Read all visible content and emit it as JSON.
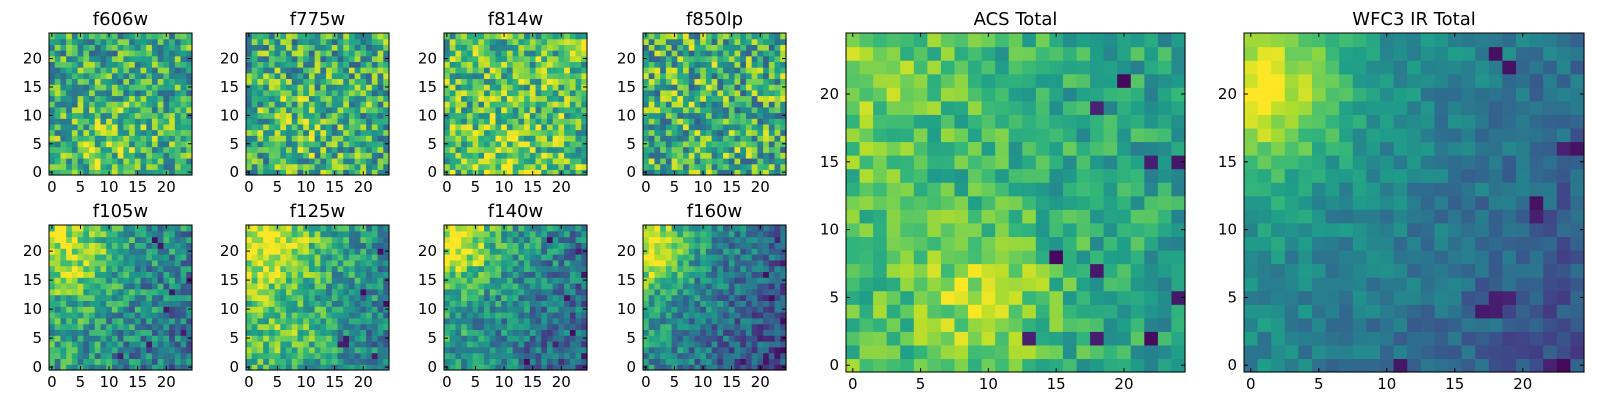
{
  "chart_data": [
    {
      "type": "heatmap",
      "title": "f606w",
      "colormap": "viridis",
      "grid_size": 25,
      "xlim": [
        -0.5,
        24.5
      ],
      "ylim": [
        -0.5,
        24.5
      ],
      "xticks": [
        0,
        5,
        10,
        15,
        20
      ],
      "yticks": [
        0,
        5,
        10,
        15,
        20
      ],
      "xtick_labels": [
        "0",
        "5",
        "10",
        "15",
        "20"
      ],
      "ytick_labels": [
        "0",
        "5",
        "10",
        "15",
        "20"
      ],
      "field": {
        "base": 0.62,
        "gx": 0.0,
        "gy": 0.0,
        "blobs": [
          [
            10,
            5,
            5,
            0.15
          ]
        ],
        "noise": 0.3,
        "seed": 11
      },
      "dark_pixels": []
    },
    {
      "type": "heatmap",
      "title": "f775w",
      "colormap": "viridis",
      "grid_size": 25,
      "xlim": [
        -0.5,
        24.5
      ],
      "ylim": [
        -0.5,
        24.5
      ],
      "xticks": [
        0,
        5,
        10,
        15,
        20
      ],
      "yticks": [
        0,
        5,
        10,
        15,
        20
      ],
      "xtick_labels": [
        "0",
        "5",
        "10",
        "15",
        "20"
      ],
      "ytick_labels": [
        "0",
        "5",
        "10",
        "15",
        "20"
      ],
      "field": {
        "base": 0.62,
        "gx": 0.0,
        "gy": 0.0,
        "blobs": [
          [
            8,
            8,
            5,
            0.1
          ]
        ],
        "noise": 0.32,
        "seed": 23
      },
      "dark_pixels": []
    },
    {
      "type": "heatmap",
      "title": "f814w",
      "colormap": "viridis",
      "grid_size": 25,
      "xlim": [
        -0.5,
        24.5
      ],
      "ylim": [
        -0.5,
        24.5
      ],
      "xticks": [
        0,
        5,
        10,
        15,
        20
      ],
      "yticks": [
        0,
        5,
        10,
        15,
        20
      ],
      "xtick_labels": [
        "0",
        "5",
        "10",
        "15",
        "20"
      ],
      "ytick_labels": [
        "0",
        "5",
        "10",
        "15",
        "20"
      ],
      "field": {
        "base": 0.7,
        "gx": 0.0,
        "gy": 0.0,
        "blobs": [
          [
            10,
            3,
            4,
            0.15
          ]
        ],
        "noise": 0.3,
        "seed": 37
      },
      "dark_pixels": []
    },
    {
      "type": "heatmap",
      "title": "f850lp",
      "colormap": "viridis",
      "grid_size": 25,
      "xlim": [
        -0.5,
        24.5
      ],
      "ylim": [
        -0.5,
        24.5
      ],
      "xticks": [
        0,
        5,
        10,
        15,
        20
      ],
      "yticks": [
        0,
        5,
        10,
        15,
        20
      ],
      "xtick_labels": [
        "0",
        "5",
        "10",
        "15",
        "20"
      ],
      "ytick_labels": [
        "0",
        "5",
        "10",
        "15",
        "20"
      ],
      "field": {
        "base": 0.64,
        "gx": 0.0,
        "gy": 0.0,
        "blobs": [],
        "noise": 0.34,
        "seed": 51
      },
      "dark_pixels": []
    },
    {
      "type": "heatmap",
      "title": "ACS Total",
      "colormap": "viridis",
      "grid_size": 25,
      "xlim": [
        -0.5,
        24.5
      ],
      "ylim": [
        -0.5,
        24.5
      ],
      "xticks": [
        0,
        5,
        10,
        15,
        20
      ],
      "yticks": [
        0,
        5,
        10,
        15,
        20
      ],
      "xtick_labels": [
        "0",
        "5",
        "10",
        "15",
        "20"
      ],
      "ytick_labels": [
        "0",
        "5",
        "10",
        "15",
        "20"
      ],
      "field": {
        "base": 0.64,
        "gx": -0.006,
        "gy": 0.0,
        "blobs": [
          [
            10,
            5,
            3.5,
            0.25
          ],
          [
            3,
            22,
            4,
            0.1
          ]
        ],
        "noise": 0.16,
        "seed": 67
      },
      "dark_pixels": [
        [
          18,
          19
        ],
        [
          22,
          15
        ],
        [
          24,
          15
        ],
        [
          15,
          8
        ],
        [
          18,
          7
        ],
        [
          24,
          5
        ],
        [
          13,
          2
        ],
        [
          18,
          2
        ],
        [
          22,
          2
        ],
        [
          20,
          21
        ]
      ]
    },
    {
      "type": "heatmap",
      "title": "WFC3 IR Total",
      "colormap": "viridis",
      "grid_size": 25,
      "xlim": [
        -0.5,
        24.5
      ],
      "ylim": [
        -0.5,
        24.5
      ],
      "xticks": [
        0,
        5,
        10,
        15,
        20
      ],
      "yticks": [
        0,
        5,
        10,
        15,
        20
      ],
      "xtick_labels": [
        "0",
        "5",
        "10",
        "15",
        "20"
      ],
      "ytick_labels": [
        "0",
        "5",
        "10",
        "15",
        "20"
      ],
      "field": {
        "base": 0.42,
        "gx": -0.01,
        "gy": 0.006,
        "blobs": [
          [
            1,
            20,
            4,
            0.4
          ]
        ],
        "noise": 0.1,
        "seed": 79
      },
      "dark_pixels": [
        [
          18,
          23
        ],
        [
          19,
          22
        ],
        [
          23,
          16
        ],
        [
          24,
          16
        ],
        [
          21,
          12
        ],
        [
          21,
          11
        ],
        [
          18,
          5
        ],
        [
          19,
          5
        ],
        [
          17,
          4
        ],
        [
          18,
          4
        ],
        [
          22,
          0
        ],
        [
          23,
          0
        ],
        [
          11,
          0
        ]
      ]
    },
    {
      "type": "heatmap",
      "title": "f105w",
      "colormap": "viridis",
      "grid_size": 25,
      "xlim": [
        -0.5,
        24.5
      ],
      "ylim": [
        -0.5,
        24.5
      ],
      "xticks": [
        0,
        5,
        10,
        15,
        20
      ],
      "yticks": [
        0,
        5,
        10,
        15,
        20
      ],
      "xtick_labels": [
        "0",
        "5",
        "10",
        "15",
        "20"
      ],
      "ytick_labels": [
        "0",
        "5",
        "10",
        "15",
        "20"
      ],
      "field": {
        "base": 0.52,
        "gx": -0.008,
        "gy": 0.004,
        "blobs": [
          [
            3,
            20,
            5,
            0.3
          ]
        ],
        "noise": 0.24,
        "seed": 91
      },
      "dark_pixels": [
        [
          18,
          22
        ],
        [
          19,
          21
        ],
        [
          21,
          13
        ],
        [
          20,
          10
        ],
        [
          23,
          6
        ],
        [
          17,
          4
        ],
        [
          12,
          2
        ],
        [
          24,
          15
        ]
      ]
    },
    {
      "type": "heatmap",
      "title": "f125w",
      "colormap": "viridis",
      "grid_size": 25,
      "xlim": [
        -0.5,
        24.5
      ],
      "ylim": [
        -0.5,
        24.5
      ],
      "xticks": [
        0,
        5,
        10,
        15,
        20
      ],
      "yticks": [
        0,
        5,
        10,
        15,
        20
      ],
      "xtick_labels": [
        "0",
        "5",
        "10",
        "15",
        "20"
      ],
      "ytick_labels": [
        "0",
        "5",
        "10",
        "15",
        "20"
      ],
      "field": {
        "base": 0.58,
        "gx": -0.01,
        "gy": 0.004,
        "blobs": [
          [
            4,
            21,
            5,
            0.3
          ],
          [
            8,
            5,
            4,
            0.15
          ]
        ],
        "noise": 0.22,
        "seed": 103
      },
      "dark_pixels": [
        [
          16,
          4
        ],
        [
          17,
          4
        ],
        [
          17,
          5
        ],
        [
          23,
          20
        ],
        [
          24,
          11
        ],
        [
          22,
          2
        ],
        [
          20,
          13
        ]
      ]
    },
    {
      "type": "heatmap",
      "title": "f140w",
      "colormap": "viridis",
      "grid_size": 25,
      "xlim": [
        -0.5,
        24.5
      ],
      "ylim": [
        -0.5,
        24.5
      ],
      "xticks": [
        0,
        5,
        10,
        15,
        20
      ],
      "yticks": [
        0,
        5,
        10,
        15,
        20
      ],
      "xtick_labels": [
        "0",
        "5",
        "10",
        "15",
        "20"
      ],
      "ytick_labels": [
        "0",
        "5",
        "10",
        "15",
        "20"
      ],
      "field": {
        "base": 0.48,
        "gx": -0.01,
        "gy": 0.006,
        "blobs": [
          [
            2,
            21,
            4,
            0.35
          ]
        ],
        "noise": 0.22,
        "seed": 117
      },
      "dark_pixels": [
        [
          18,
          22
        ],
        [
          23,
          20
        ],
        [
          24,
          16
        ],
        [
          21,
          12
        ],
        [
          22,
          6
        ],
        [
          19,
          4
        ],
        [
          24,
          2
        ],
        [
          14,
          1
        ]
      ]
    },
    {
      "type": "heatmap",
      "title": "f160w",
      "colormap": "viridis",
      "grid_size": 25,
      "xlim": [
        -0.5,
        24.5
      ],
      "ylim": [
        -0.5,
        24.5
      ],
      "xticks": [
        0,
        5,
        10,
        15,
        20
      ],
      "yticks": [
        0,
        5,
        10,
        15,
        20
      ],
      "xtick_labels": [
        "0",
        "5",
        "10",
        "15",
        "20"
      ],
      "ytick_labels": [
        "0",
        "5",
        "10",
        "15",
        "20"
      ],
      "field": {
        "base": 0.42,
        "gx": -0.012,
        "gy": 0.006,
        "blobs": [
          [
            1,
            20,
            4,
            0.4
          ]
        ],
        "noise": 0.2,
        "seed": 131
      },
      "dark_pixels": [
        [
          23,
          22
        ],
        [
          24,
          18
        ],
        [
          21,
          16
        ],
        [
          22,
          12
        ],
        [
          24,
          8
        ],
        [
          20,
          5
        ],
        [
          23,
          2
        ],
        [
          17,
          1
        ]
      ]
    }
  ]
}
